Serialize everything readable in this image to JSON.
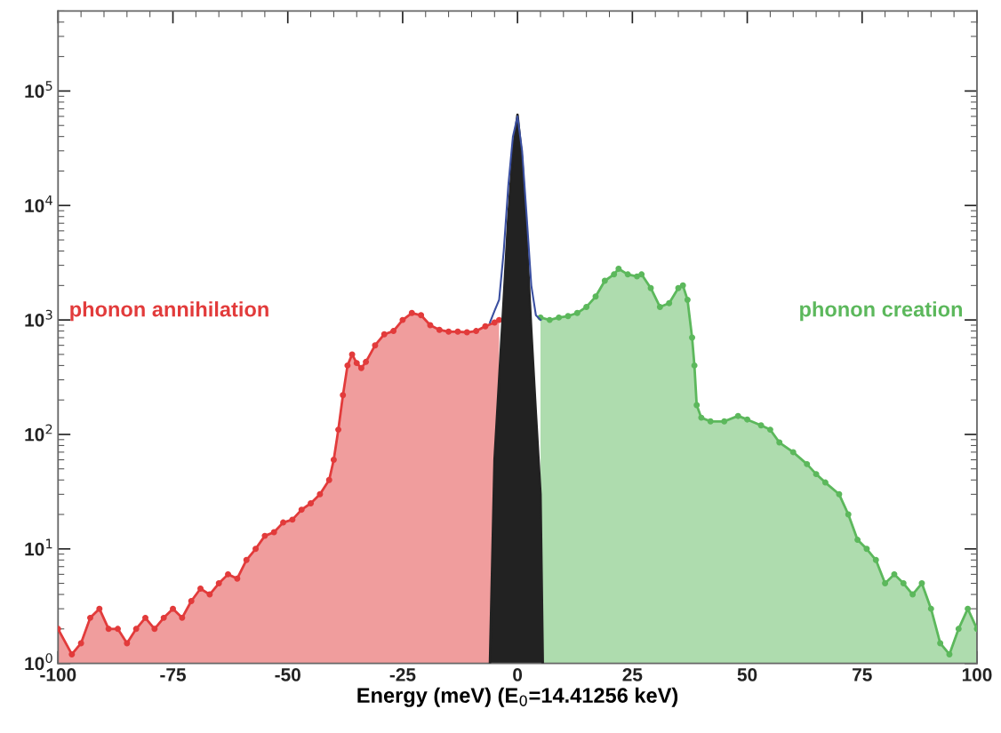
{
  "chart_data": {
    "type": "area",
    "xlabel": "Energy (meV) (E$_{0}$=14.41256 keV)",
    "log": "y",
    "grid": false,
    "marker": "circle",
    "xlim": [
      -100,
      100
    ],
    "xticks": [
      -100,
      -75,
      -50,
      -25,
      0,
      25,
      50,
      75,
      100
    ],
    "ylim": [
      1,
      500000
    ],
    "yticks": [
      {
        "value": 1,
        "label": "10$^{0}$"
      },
      {
        "value": 10,
        "label": "10$^{1}$"
      },
      {
        "value": 100,
        "label": "10$^{2}$"
      },
      {
        "value": 1000,
        "label": "10$^{3}$"
      },
      {
        "value": 10000,
        "label": "10$^{4}$"
      },
      {
        "value": 100000,
        "label": "10$^{5}$"
      }
    ],
    "series": [
      {
        "name": "phonon annihilation",
        "color": "#e23b3b",
        "x": [
          -100,
          -97,
          -95,
          -93,
          -91,
          -89,
          -87,
          -85,
          -83,
          -81,
          -79,
          -77,
          -75,
          -73,
          -71,
          -69,
          -67,
          -65,
          -63,
          -61,
          -59,
          -57,
          -55,
          -53,
          -51,
          -49,
          -47,
          -45,
          -43,
          -41,
          -40,
          -39,
          -38,
          -37,
          -36,
          -35,
          -34,
          -33,
          -31,
          -29,
          -27,
          -25,
          -23,
          -21,
          -19,
          -17,
          -15,
          -13,
          -11,
          -9,
          -7,
          -5,
          -4
        ],
        "values": [
          2,
          1.2,
          1.5,
          2.5,
          3,
          2,
          2,
          1.5,
          2,
          2.5,
          2,
          2.5,
          3,
          2.5,
          3.5,
          4.5,
          4,
          5,
          6,
          5.5,
          8,
          10,
          13,
          14,
          17,
          18,
          22,
          25,
          30,
          40,
          60,
          110,
          220,
          400,
          500,
          420,
          380,
          430,
          600,
          750,
          800,
          1000,
          1150,
          1100,
          900,
          820,
          790,
          790,
          780,
          800,
          880,
          950,
          1000
        ]
      },
      {
        "name": "phonon creation",
        "color": "#5cb85c",
        "x": [
          5,
          7,
          9,
          11,
          13,
          15,
          17,
          19,
          21,
          22,
          24,
          26,
          27,
          29,
          31,
          33,
          35,
          36,
          37,
          38,
          38.5,
          39,
          40,
          42,
          45,
          48,
          50,
          53,
          55,
          57,
          60,
          63,
          65,
          67,
          70,
          72,
          74,
          76,
          78,
          80,
          82,
          84,
          86,
          88,
          90,
          92,
          94,
          96,
          98,
          100
        ],
        "values": [
          1050,
          1000,
          1050,
          1080,
          1150,
          1300,
          1600,
          2200,
          2500,
          2800,
          2500,
          2400,
          2500,
          1900,
          1300,
          1400,
          1900,
          2000,
          1500,
          700,
          400,
          180,
          140,
          130,
          130,
          145,
          135,
          120,
          110,
          85,
          70,
          55,
          45,
          38,
          30,
          20,
          12,
          10,
          8,
          5,
          6,
          5,
          4,
          5,
          3,
          1.5,
          1.2,
          2,
          3,
          2
        ]
      },
      {
        "marker": "none",
        "color": "#222222",
        "x": [
          -6,
          -5,
          -4,
          -3,
          -2,
          -1,
          0,
          1,
          2,
          3,
          4,
          5,
          5.5
        ],
        "values": [
          1,
          60,
          300,
          1500,
          8000,
          30000,
          62000,
          25000,
          5000,
          800,
          150,
          30,
          1
        ]
      },
      {
        "type": "line",
        "marker": "none",
        "color": "#3a4fa0",
        "x": [
          -6,
          -5,
          -4,
          -3,
          -2,
          -1,
          0,
          1,
          2,
          3,
          4,
          5
        ],
        "values": [
          950,
          1200,
          1500,
          4000,
          15000,
          40000,
          60000,
          30000,
          8000,
          2000,
          1100,
          1000
        ]
      }
    ]
  }
}
